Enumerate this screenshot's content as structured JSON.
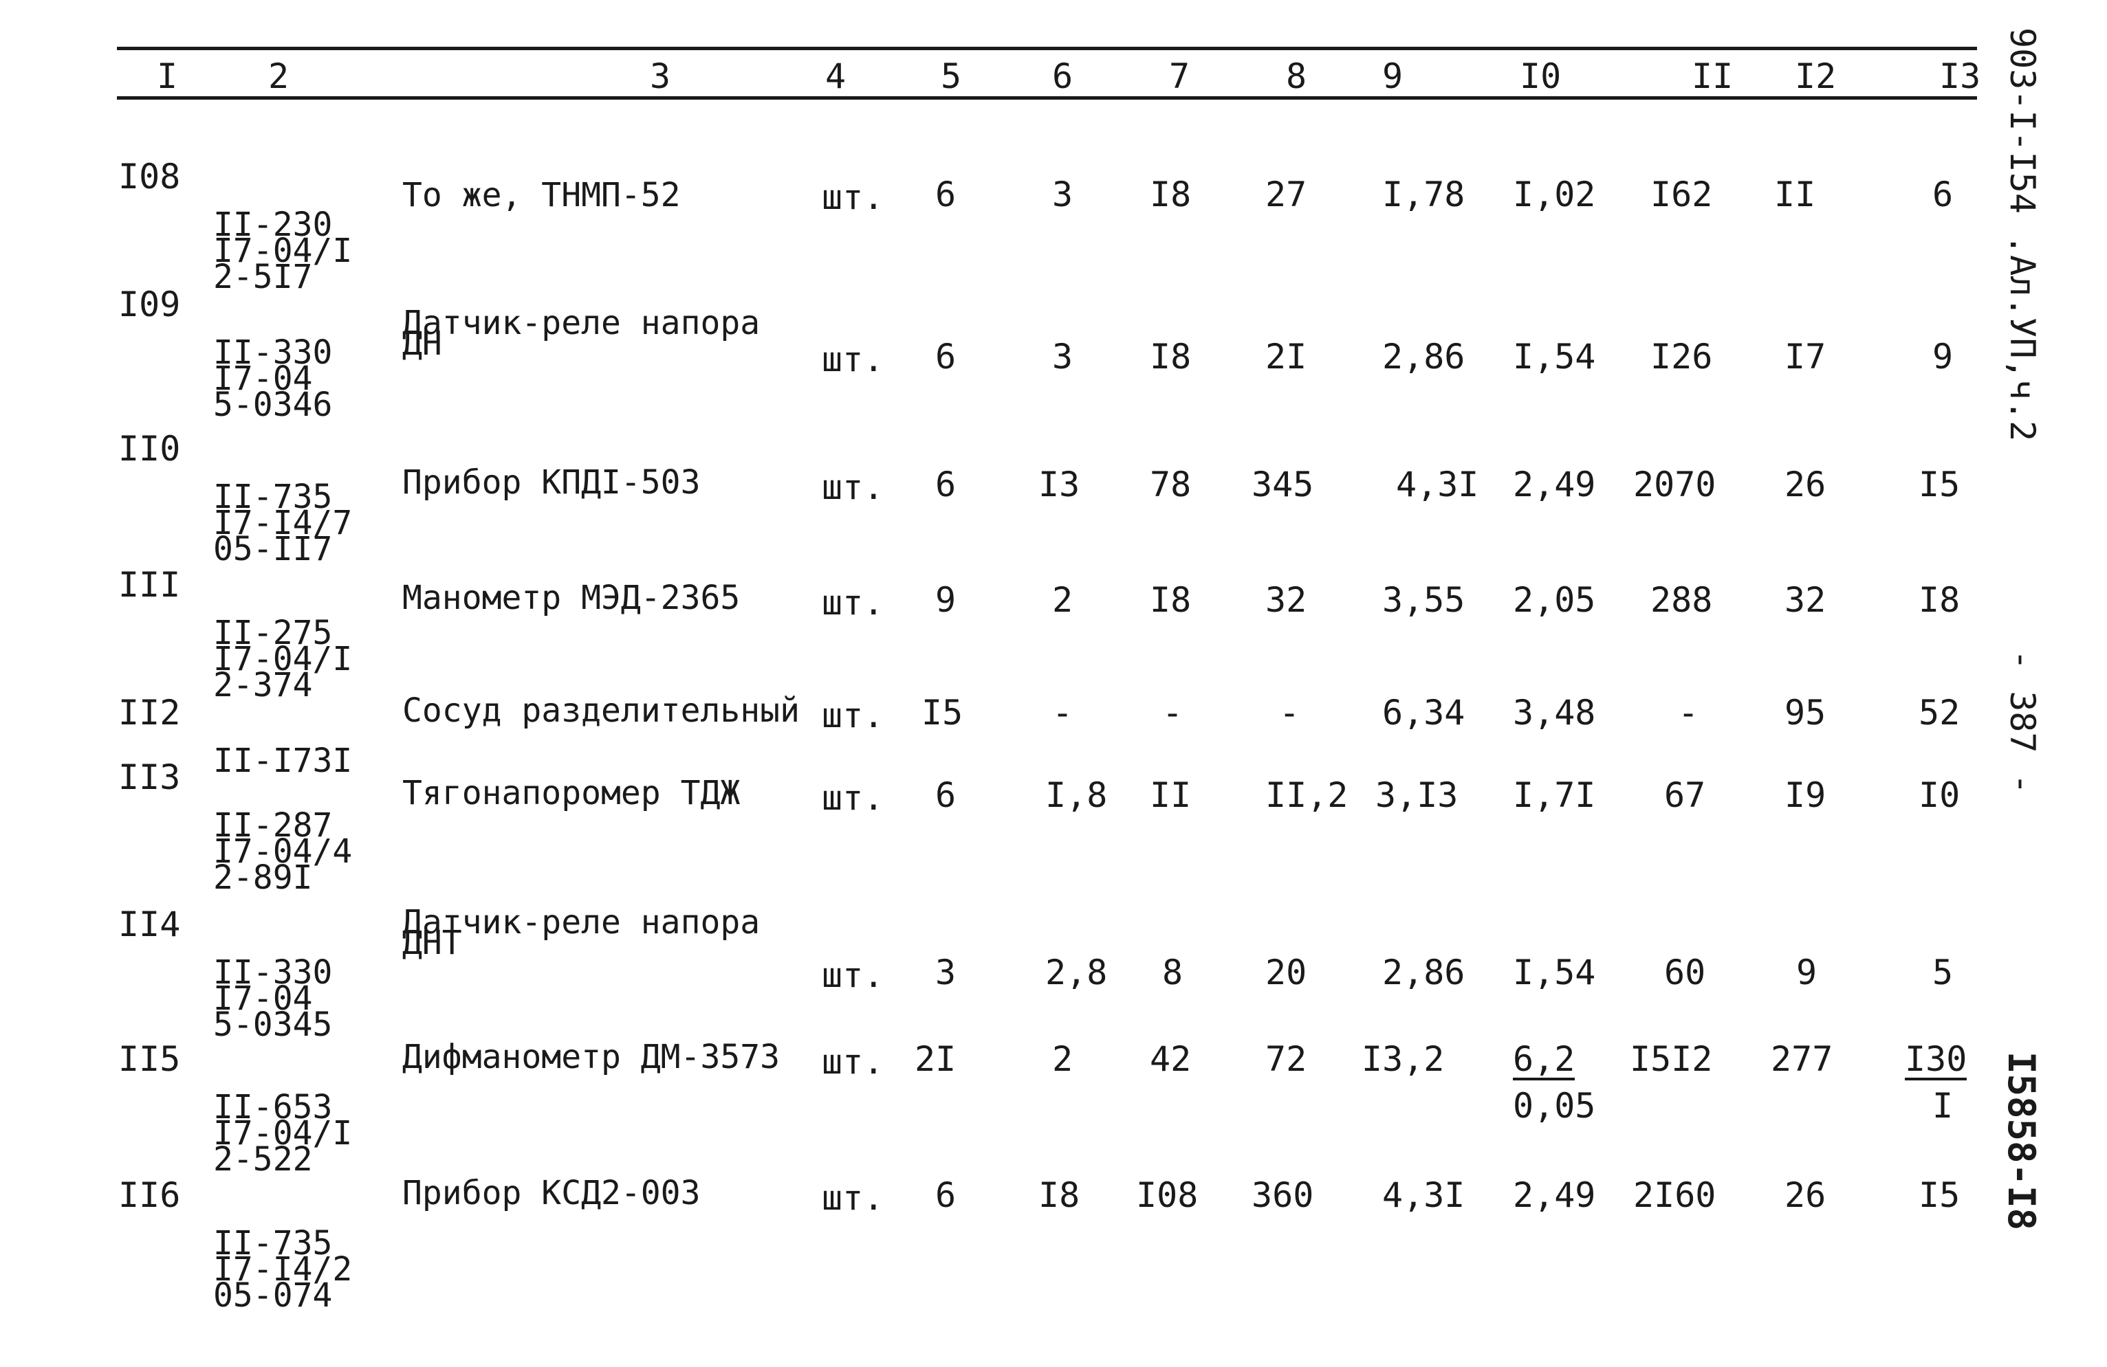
{
  "columns": [
    "I",
    "2",
    "3",
    "4",
    "5",
    "6",
    "7",
    "8",
    "9",
    "I0",
    "II",
    "I2",
    "I3"
  ],
  "rows": [
    {
      "num": "I08",
      "code": [
        "II-230",
        "I7-04/I",
        "2-5I7"
      ],
      "name": [
        "То же, ТНМП-52"
      ],
      "unit": "шт.",
      "c5": "6",
      "c6": "3",
      "c7": "I8",
      "c8": "27",
      "c9": "I,78",
      "c10": "I,02",
      "c11": "I62",
      "c12": "II",
      "c13": "6"
    },
    {
      "num": "I09",
      "code": [
        "II-330",
        "I7-04",
        "5-0346"
      ],
      "name": [
        "Датчик-реле напора",
        "ДН"
      ],
      "unit": "шт.",
      "c5": "6",
      "c6": "3",
      "c7": "I8",
      "c8": "2I",
      "c9": "2,86",
      "c10": "I,54",
      "c11": "I26",
      "c12": "I7",
      "c13": "9"
    },
    {
      "num": "II0",
      "code": [
        "II-735",
        "I7-I4/7",
        "05-II7"
      ],
      "name": [
        "Прибор КПДI-503"
      ],
      "unit": "шт.",
      "c5": "6",
      "c6": "I3",
      "c7": "78",
      "c8": "345",
      "c9": "4,3I",
      "c10": "2,49",
      "c11": "2070",
      "c12": "26",
      "c13": "I5"
    },
    {
      "num": "III",
      "code": [
        "II-275",
        "I7-04/I",
        "2-374"
      ],
      "name": [
        "Манометр МЭД-2365"
      ],
      "unit": "шт.",
      "c5": "9",
      "c6": "2",
      "c7": "I8",
      "c8": "32",
      "c9": "3,55",
      "c10": "2,05",
      "c11": "288",
      "c12": "32",
      "c13": "I8"
    },
    {
      "num": "II2",
      "code": [
        "II-I73I"
      ],
      "name": [
        "Сосуд разделительный"
      ],
      "unit": "шт.",
      "c5": "I5",
      "c6": "-",
      "c7": "-",
      "c8": "-",
      "c9": "6,34",
      "c10": "3,48",
      "c11": "-",
      "c12": "95",
      "c13": "52"
    },
    {
      "num": "II3",
      "code": [
        "II-287",
        "I7-04/4",
        "2-89I"
      ],
      "name": [
        "Тягонапоромер ТДЖ"
      ],
      "unit": "шт.",
      "c5": "6",
      "c6": "I,8",
      "c7": "II",
      "c8": "II,2",
      "c9": "3,I3",
      "c10": "I,7I",
      "c11": "67",
      "c12": "I9",
      "c13": "I0"
    },
    {
      "num": "II4",
      "code": [
        "II-330",
        "I7-04",
        "5-0345"
      ],
      "name": [
        "Датчик-реле напора",
        "ДНТ"
      ],
      "unit": "шт.",
      "c5": "3",
      "c6": "2,8",
      "c7": "8",
      "c8": "20",
      "c9": "2,86",
      "c10": "I,54",
      "c11": "60",
      "c12": "9",
      "c13": "5"
    },
    {
      "num": "II5",
      "code": [
        "II-653",
        "I7-04/I",
        "2-522"
      ],
      "name": [
        "Дифманометр ДМ-3573"
      ],
      "unit": "шт.",
      "c5": "2I",
      "c6": "2",
      "c7": "42",
      "c8": "72",
      "c9": "I3,2",
      "c10": "6,2",
      "c10b": "0,05",
      "c11": "I5I2",
      "c12": "277",
      "c13": "I30",
      "c13b": "I"
    },
    {
      "num": "II6",
      "code": [
        "II-735",
        "I7-I4/2",
        "05-074"
      ],
      "name": [
        "Прибор КСД2-003"
      ],
      "unit": "шт.",
      "c5": "6",
      "c6": "I8",
      "c7": "I08",
      "c8": "360",
      "c9": "4,3I",
      "c10": "2,49",
      "c11": "2I60",
      "c12": "26",
      "c13": "I5"
    }
  ],
  "side": {
    "doc_code": "903-I-I54 .Ал.УП,ч.2",
    "page_no": "- 387 -",
    "sheet_no": "I5858-I8"
  }
}
